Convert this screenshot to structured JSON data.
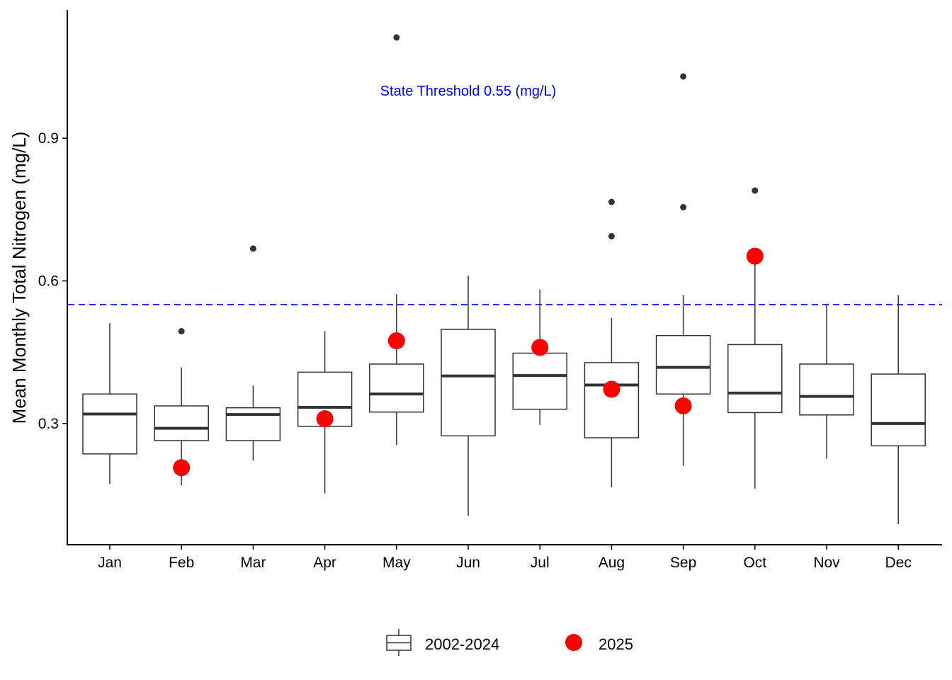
{
  "chart_data": {
    "type": "boxplot",
    "ylabel": "Mean Monthly Total Nitrogen (mg/L)",
    "xlabel": "",
    "ylim": [
      0.045,
      1.17
    ],
    "yticks": [
      0.3,
      0.6,
      0.9
    ],
    "ytick_labels": [
      "0.3",
      "0.6",
      "0.9"
    ],
    "categories": [
      "Jan",
      "Feb",
      "Mar",
      "Apr",
      "May",
      "Jun",
      "Jul",
      "Aug",
      "Sep",
      "Oct",
      "Nov",
      "Dec"
    ],
    "series": [
      {
        "name": "2002-2024",
        "kind": "box",
        "boxes": [
          {
            "month": "Jan",
            "whisker_low": 0.173,
            "q1": 0.236,
            "median": 0.32,
            "q3": 0.362,
            "whisker_high": 0.511,
            "outliers": []
          },
          {
            "month": "Feb",
            "whisker_low": 0.17,
            "q1": 0.264,
            "median": 0.29,
            "q3": 0.337,
            "whisker_high": 0.418,
            "outliers": [
              0.494
            ]
          },
          {
            "month": "Mar",
            "whisker_low": 0.222,
            "q1": 0.264,
            "median": 0.319,
            "q3": 0.333,
            "whisker_high": 0.38,
            "outliers": [
              0.668
            ]
          },
          {
            "month": "Apr",
            "whisker_low": 0.153,
            "q1": 0.294,
            "median": 0.334,
            "q3": 0.408,
            "whisker_high": 0.494,
            "outliers": []
          },
          {
            "month": "May",
            "whisker_low": 0.255,
            "q1": 0.324,
            "median": 0.362,
            "q3": 0.425,
            "whisker_high": 0.572,
            "outliers": [
              1.112
            ]
          },
          {
            "month": "Jun",
            "whisker_low": 0.106,
            "q1": 0.274,
            "median": 0.4,
            "q3": 0.498,
            "whisker_high": 0.611,
            "outliers": []
          },
          {
            "month": "Jul",
            "whisker_low": 0.297,
            "q1": 0.33,
            "median": 0.401,
            "q3": 0.448,
            "whisker_high": 0.582,
            "outliers": []
          },
          {
            "month": "Aug",
            "whisker_low": 0.166,
            "q1": 0.27,
            "median": 0.381,
            "q3": 0.428,
            "whisker_high": 0.522,
            "outliers": [
              0.694,
              0.766
            ]
          },
          {
            "month": "Sep",
            "whisker_low": 0.211,
            "q1": 0.362,
            "median": 0.418,
            "q3": 0.485,
            "whisker_high": 0.57,
            "outliers": [
              0.755,
              1.03
            ]
          },
          {
            "month": "Oct",
            "whisker_low": 0.163,
            "q1": 0.323,
            "median": 0.364,
            "q3": 0.466,
            "whisker_high": 0.648,
            "outliers": [
              0.79
            ]
          },
          {
            "month": "Nov",
            "whisker_low": 0.226,
            "q1": 0.318,
            "median": 0.357,
            "q3": 0.425,
            "whisker_high": 0.552,
            "outliers": []
          },
          {
            "month": "Dec",
            "whisker_low": 0.088,
            "q1": 0.253,
            "median": 0.3,
            "q3": 0.404,
            "whisker_high": 0.57,
            "outliers": []
          }
        ]
      },
      {
        "name": "2025",
        "kind": "points",
        "color": "#ff0000",
        "points": [
          {
            "month": "Feb",
            "value": 0.207
          },
          {
            "month": "Apr",
            "value": 0.31
          },
          {
            "month": "May",
            "value": 0.474
          },
          {
            "month": "Jul",
            "value": 0.46
          },
          {
            "month": "Aug",
            "value": 0.372
          },
          {
            "month": "Sep",
            "value": 0.337
          },
          {
            "month": "Oct",
            "value": 0.652
          }
        ]
      }
    ],
    "reference_line": {
      "value": 0.55,
      "style": "dashed",
      "color": "#0000ff",
      "label": "State Threshold 0.55 (mg/L)",
      "label_x_category": "Jun",
      "label_y_value": 1.0
    },
    "legend": {
      "position": "bottom",
      "items": [
        {
          "name": "2002-2024",
          "symbol": "box"
        },
        {
          "name": "2025",
          "symbol": "point",
          "color": "#ff0000"
        }
      ]
    },
    "colors": {
      "box_stroke": "#333333",
      "median": "#333333",
      "outlier": "#333333",
      "point_2025": "#ff0000",
      "threshold": "#0000ff",
      "axis": "#000000"
    }
  }
}
